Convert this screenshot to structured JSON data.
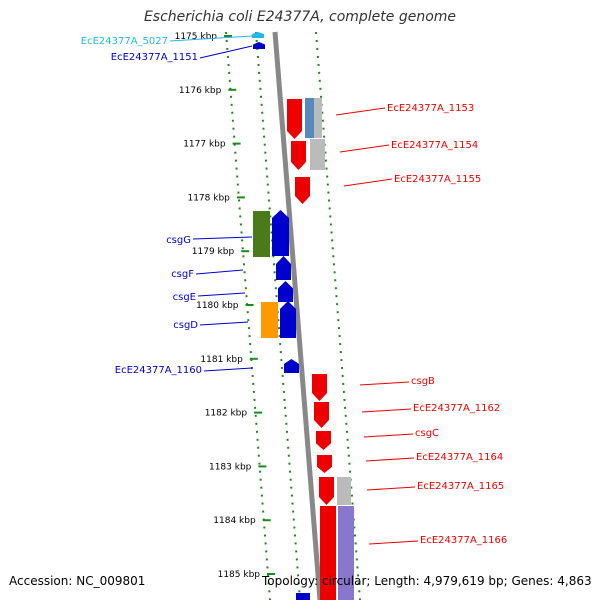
{
  "title": "Escherichia coli E24377A, complete genome",
  "footer": {
    "accession": "Accession: NC_009801",
    "summary": "Topology: circular; Length: 4,979,619 bp; Genes: 4,863"
  },
  "ruler": {
    "ticks": [
      {
        "kbp": 1175,
        "label": "1175 kbp"
      },
      {
        "kbp": 1176,
        "label": "1176 kbp"
      },
      {
        "kbp": 1177,
        "label": "1177 kbp"
      },
      {
        "kbp": 1178,
        "label": "1178 kbp"
      },
      {
        "kbp": 1179,
        "label": "1179 kbp"
      },
      {
        "kbp": 1180,
        "label": "1180 kbp"
      },
      {
        "kbp": 1181,
        "label": "1181 kbp"
      },
      {
        "kbp": 1182,
        "label": "1182 kbp"
      },
      {
        "kbp": 1183,
        "label": "1183 kbp"
      },
      {
        "kbp": 1184,
        "label": "1184 kbp"
      },
      {
        "kbp": 1185,
        "label": "1185 kbp"
      }
    ]
  },
  "genes": [
    {
      "label": "EcE24377A_5027",
      "strand": "minus",
      "color": "#22b8e8"
    },
    {
      "label": "EcE24377A_1151",
      "strand": "minus",
      "color": "#0000cc"
    },
    {
      "label": "EcE24377A_1153",
      "strand": "plus",
      "color": "#ee0000"
    },
    {
      "label": "EcE24377A_1154",
      "strand": "plus",
      "color": "#ee0000"
    },
    {
      "label": "EcE24377A_1155",
      "strand": "plus",
      "color": "#ee0000"
    },
    {
      "label": "csgG",
      "strand": "minus",
      "color": "#0000cc"
    },
    {
      "label": "csgF",
      "strand": "minus",
      "color": "#0000cc"
    },
    {
      "label": "csgE",
      "strand": "minus",
      "color": "#0000cc"
    },
    {
      "label": "csgD",
      "strand": "minus",
      "color": "#0000cc"
    },
    {
      "label": "EcE24377A_1160",
      "strand": "minus",
      "color": "#0000cc"
    },
    {
      "label": "csgB",
      "strand": "plus",
      "color": "#ee0000"
    },
    {
      "label": "EcE24377A_1162",
      "strand": "plus",
      "color": "#ee0000"
    },
    {
      "label": "csgC",
      "strand": "plus",
      "color": "#ee0000"
    },
    {
      "label": "EcE24377A_1164",
      "strand": "plus",
      "color": "#ee0000"
    },
    {
      "label": "EcE24377A_1165",
      "strand": "plus",
      "color": "#ee0000"
    },
    {
      "label": "EcE24377A_1166",
      "strand": "plus",
      "color": "#ee0000"
    }
  ],
  "legend_colors": {
    "plus_strand": "#ee0000",
    "minus_strand": "#0000cc",
    "backbone": "#888888",
    "guide_dots": "#1a8a1a",
    "cog_olive": "#4a7a1a",
    "cog_orange": "#ff9900",
    "cog_steel": "#5588bb",
    "cog_gray": "#bbbbbb",
    "cog_lavender": "#8877cc"
  }
}
